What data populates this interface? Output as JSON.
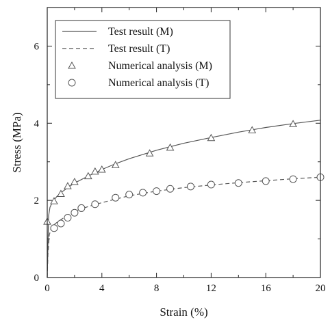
{
  "chart_data": {
    "type": "line",
    "title": "",
    "xlabel": "Strain (%)",
    "ylabel": "Stress (MPa)",
    "xlim": [
      0,
      20
    ],
    "ylim": [
      0,
      7
    ],
    "xticks": [
      0,
      4,
      8,
      12,
      16,
      20
    ],
    "yticks": [
      0,
      2,
      4,
      6
    ],
    "grid": false,
    "legend_position": "top-left",
    "series": [
      {
        "name": "Test result (M)",
        "style": "solid-line",
        "color": "#555555",
        "x": [
          0,
          0.1,
          0.2,
          0.4,
          0.7,
          1.0,
          1.5,
          2.0,
          3.0,
          4.0,
          5.0,
          6.0,
          8.0,
          10.0,
          12.0,
          14.0,
          16.0,
          18.0,
          20.0
        ],
        "y": [
          0,
          1.6,
          1.82,
          1.97,
          2.1,
          2.2,
          2.33,
          2.45,
          2.63,
          2.8,
          2.95,
          3.08,
          3.3,
          3.48,
          3.63,
          3.77,
          3.89,
          3.99,
          4.08
        ]
      },
      {
        "name": "Test result (T)",
        "style": "dashed-line",
        "color": "#555555",
        "x": [
          0,
          0.05,
          0.15,
          0.3,
          0.6,
          1.0,
          1.5,
          2.0,
          3.0,
          4.0,
          5.0,
          6.0,
          8.0,
          10.0,
          12.0,
          14.0,
          16.0,
          18.0,
          20.0
        ],
        "y": [
          0,
          0.6,
          1.1,
          1.3,
          1.4,
          1.5,
          1.62,
          1.72,
          1.84,
          1.94,
          2.03,
          2.12,
          2.24,
          2.33,
          2.4,
          2.46,
          2.51,
          2.56,
          2.6
        ]
      },
      {
        "name": "Numerical analysis (M)",
        "style": "triangle-markers",
        "color": "#555555",
        "x": [
          0,
          0.5,
          1.0,
          1.5,
          2.0,
          3.0,
          3.5,
          4.0,
          5.0,
          7.5,
          9.0,
          12.0,
          15.0,
          18.0
        ],
        "y": [
          1.45,
          1.98,
          2.17,
          2.37,
          2.48,
          2.63,
          2.75,
          2.8,
          2.92,
          3.22,
          3.37,
          3.62,
          3.82,
          3.98
        ]
      },
      {
        "name": "Numerical analysis (T)",
        "style": "circle-markers",
        "color": "#555555",
        "x": [
          0.5,
          1.0,
          1.5,
          2.0,
          2.5,
          3.5,
          5.0,
          6.0,
          7.0,
          8.0,
          9.0,
          10.5,
          12.0,
          14.0,
          16.0,
          18.0,
          20.0
        ],
        "y": [
          1.28,
          1.4,
          1.55,
          1.68,
          1.8,
          1.9,
          2.07,
          2.15,
          2.2,
          2.24,
          2.3,
          2.36,
          2.41,
          2.45,
          2.5,
          2.55,
          2.6
        ]
      }
    ]
  }
}
